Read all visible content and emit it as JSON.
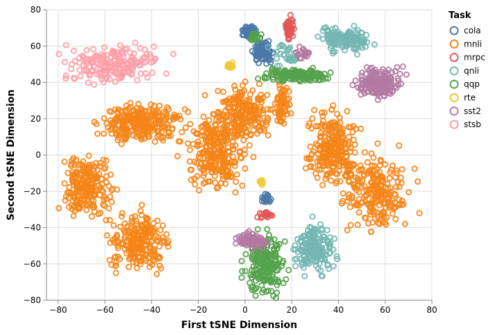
{
  "chart_data": {
    "type": "scatter",
    "title": "",
    "xlabel": "First tSNE Dimension",
    "ylabel": "Second tSNE Dimension",
    "xlim": [
      -85,
      80
    ],
    "ylim": [
      -80,
      80
    ],
    "x_ticks": [
      -80,
      -60,
      -40,
      -20,
      0,
      20,
      40,
      60,
      80
    ],
    "y_ticks": [
      -80,
      -60,
      -40,
      -20,
      0,
      20,
      40,
      60,
      80
    ],
    "grid": true,
    "marker": "open circle",
    "legend": {
      "title": "Task",
      "position": "right"
    },
    "series": [
      {
        "name": "cola",
        "color": "#4c78a8",
        "clusters": [
          {
            "x": [
              -1,
              5
            ],
            "y": [
              64,
              71
            ],
            "n": 120
          },
          {
            "x": [
              3,
              13
            ],
            "y": [
              50,
              63
            ],
            "n": 90
          },
          {
            "x": [
              6,
              12
            ],
            "y": [
              -27,
              -21
            ],
            "n": 20
          }
        ]
      },
      {
        "name": "mnli",
        "color": "#f58518",
        "clusters": [
          {
            "x": [
              -65,
              -25
            ],
            "y": [
              5,
              30
            ],
            "n": 260
          },
          {
            "x": [
              -80,
              -55
            ],
            "y": [
              -40,
              5
            ],
            "n": 200
          },
          {
            "x": [
              -60,
              -30
            ],
            "y": [
              -65,
              -30
            ],
            "n": 220
          },
          {
            "x": [
              -28,
              2
            ],
            "y": [
              -25,
              30
            ],
            "n": 260
          },
          {
            "x": [
              -15,
              15
            ],
            "y": [
              5,
              42
            ],
            "n": 200
          },
          {
            "x": [
              25,
              50
            ],
            "y": [
              -20,
              28
            ],
            "n": 240
          },
          {
            "x": [
              40,
              72
            ],
            "y": [
              -45,
              5
            ],
            "n": 220
          },
          {
            "x": [
              12,
              20
            ],
            "y": [
              12,
              45
            ],
            "n": 60
          }
        ]
      },
      {
        "name": "mrpc",
        "color": "#e45756",
        "clusters": [
          {
            "x": [
              17,
              21
            ],
            "y": [
              62,
              78
            ],
            "n": 45
          },
          {
            "x": [
              4,
              12
            ],
            "y": [
              -35,
              -31
            ],
            "n": 18
          }
        ]
      },
      {
        "name": "qnli",
        "color": "#72b7b2",
        "clusters": [
          {
            "x": [
              30,
              57
            ],
            "y": [
              56,
              72
            ],
            "n": 150
          },
          {
            "x": [
              20,
              40
            ],
            "y": [
              -68,
              -35
            ],
            "n": 160
          },
          {
            "x": [
              10,
              25
            ],
            "y": [
              48,
              62
            ],
            "n": 30
          }
        ]
      },
      {
        "name": "qqp",
        "color": "#54a24b",
        "clusters": [
          {
            "x": [
              5,
              38
            ],
            "y": [
              40,
              48
            ],
            "n": 140
          },
          {
            "x": [
              -1,
              18
            ],
            "y": [
              -80,
              -40
            ],
            "n": 200
          },
          {
            "x": [
              2,
              8
            ],
            "y": [
              62,
              68
            ],
            "n": 15
          }
        ]
      },
      {
        "name": "rte",
        "color": "#eeca3b",
        "clusters": [
          {
            "x": [
              -8,
              -5
            ],
            "y": [
              47,
              52
            ],
            "n": 15
          },
          {
            "x": [
              6,
              8
            ],
            "y": [
              -17,
              -13
            ],
            "n": 8
          }
        ]
      },
      {
        "name": "sst2",
        "color": "#b279a2",
        "clusters": [
          {
            "x": [
              45,
              70
            ],
            "y": [
              30,
              50
            ],
            "n": 170
          },
          {
            "x": [
              -5,
              10
            ],
            "y": [
              -52,
              -42
            ],
            "n": 70
          },
          {
            "x": [
              20,
              30
            ],
            "y": [
              52,
              60
            ],
            "n": 20
          }
        ]
      },
      {
        "name": "stsb",
        "color": "#ff9da6",
        "clusters": [
          {
            "x": [
              -80,
              -32
            ],
            "y": [
              38,
              62
            ],
            "n": 180
          }
        ]
      }
    ]
  }
}
